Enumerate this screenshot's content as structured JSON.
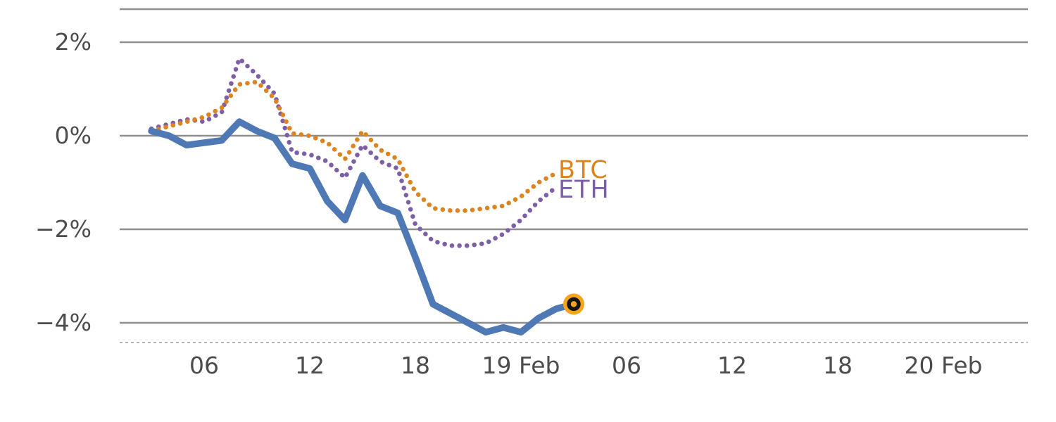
{
  "chart_data": {
    "type": "line",
    "title": "",
    "x_axis": {
      "ticks": [
        {
          "label": "06",
          "hour": 6
        },
        {
          "label": "12",
          "hour": 12
        },
        {
          "label": "18",
          "hour": 18
        },
        {
          "label": "19 Feb",
          "hour": 24
        },
        {
          "label": "06",
          "hour": 30
        },
        {
          "label": "12",
          "hour": 36
        },
        {
          "label": "18",
          "hour": 42
        },
        {
          "label": "20 Feb",
          "hour": 48
        }
      ]
    },
    "y_axis": {
      "unit": "%",
      "ticks": [
        {
          "label": "2%",
          "value": 2
        },
        {
          "label": "0%",
          "value": 0
        },
        {
          "label": "−2%",
          "value": -2
        },
        {
          "label": "−4%",
          "value": -4
        }
      ]
    },
    "series": [
      {
        "label": "",
        "style": "solid",
        "color": "#4e79b5",
        "x_hours": [
          3,
          4,
          5,
          6,
          7,
          8,
          9,
          10,
          11,
          12,
          13,
          14,
          15,
          16,
          17,
          18,
          19,
          20,
          21,
          22,
          23,
          24,
          25,
          26,
          27
        ],
        "values": [
          0.1,
          0.0,
          -0.2,
          -0.15,
          -0.1,
          0.3,
          0.1,
          -0.05,
          -0.6,
          -0.7,
          -1.4,
          -1.8,
          -0.85,
          -1.5,
          -1.65,
          -2.6,
          -3.6,
          -3.8,
          -4.0,
          -4.2,
          -4.1,
          -4.2,
          -3.9,
          -3.7,
          -3.6
        ]
      },
      {
        "label": "BTC",
        "style": "dotted",
        "color": "#dd8420",
        "x_hours": [
          3,
          4,
          5,
          6,
          7,
          8,
          9,
          10,
          11,
          12,
          13,
          14,
          15,
          16,
          17,
          18,
          19,
          20,
          21,
          22,
          23,
          24,
          25,
          26
        ],
        "values": [
          0.1,
          0.2,
          0.3,
          0.4,
          0.6,
          1.1,
          1.15,
          0.8,
          0.05,
          0.0,
          -0.15,
          -0.5,
          0.1,
          -0.3,
          -0.5,
          -1.2,
          -1.55,
          -1.6,
          -1.6,
          -1.55,
          -1.5,
          -1.3,
          -1.0,
          -0.8
        ]
      },
      {
        "label": "ETH",
        "style": "dotted",
        "color": "#7d5fa8",
        "x_hours": [
          3,
          4,
          5,
          6,
          7,
          8,
          9,
          10,
          11,
          12,
          13,
          14,
          15,
          16,
          17,
          18,
          19,
          20,
          21,
          22,
          23,
          24,
          25,
          26
        ],
        "values": [
          0.15,
          0.25,
          0.35,
          0.3,
          0.5,
          1.65,
          1.3,
          0.9,
          -0.35,
          -0.4,
          -0.55,
          -0.9,
          -0.2,
          -0.55,
          -0.7,
          -1.9,
          -2.25,
          -2.35,
          -2.35,
          -2.3,
          -2.1,
          -1.8,
          -1.4,
          -1.1
        ]
      }
    ],
    "endpoint_marker": {
      "hour": 27,
      "value": -3.6
    },
    "colors": {
      "grid": "#8e8e8e",
      "top_spine": "#8e8e8e",
      "baseline": "#b5b5b5",
      "tick_text": "#4c4c4c",
      "marker_fill": "#f6a41c",
      "marker_ring": "#141414"
    }
  }
}
